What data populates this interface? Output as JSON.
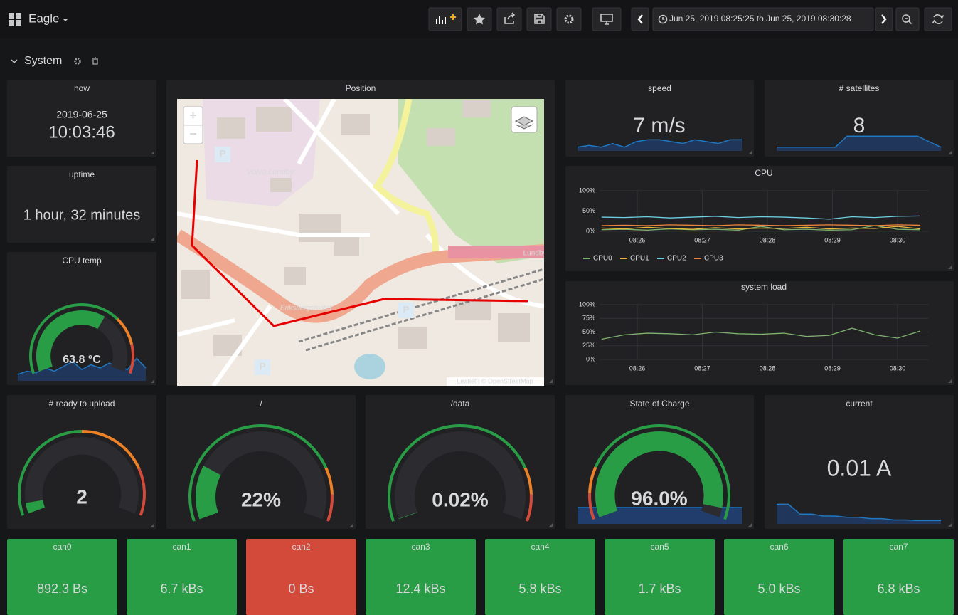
{
  "header": {
    "title": "Eagle",
    "time_range": "Jun 25, 2019 08:25:25 to Jun 25, 2019 08:30:28"
  },
  "row": {
    "title": "System"
  },
  "now": {
    "title": "now",
    "date": "2019-06-25",
    "time": "10:03:46"
  },
  "uptime": {
    "title": "uptime",
    "value": "1 hour, 32 minutes"
  },
  "cpu_temp": {
    "title": "CPU temp",
    "value": 63.8,
    "label": "63.8 °C",
    "min": 0,
    "max": 100,
    "thresholds": [
      {
        "value": 0,
        "color": "#299c46"
      },
      {
        "value": 70,
        "color": "#ed8128"
      },
      {
        "value": 85,
        "color": "#d44a3a"
      }
    ],
    "spark": {
      "values": [
        20,
        30,
        25,
        40,
        30,
        45,
        60,
        35,
        50,
        40,
        55,
        45,
        35,
        70,
        40
      ],
      "ylim": [
        0,
        100
      ]
    }
  },
  "position": {
    "title": "Position",
    "zoom_in": "+",
    "zoom_out": "−",
    "parking": "P",
    "places": [
      "Volvo Lundby",
      "Eriksbergsmotet",
      "Lundby"
    ],
    "attribution": "Leaflet | © OpenStreetMap"
  },
  "speed": {
    "title": "speed",
    "value": "7 m/s",
    "spark": {
      "values": [
        2,
        3,
        2,
        4,
        2,
        5,
        6,
        6,
        5,
        4,
        6,
        5,
        4,
        6,
        6
      ],
      "ylim": [
        0,
        10
      ]
    }
  },
  "satellites": {
    "title": "# satellites",
    "value": "8",
    "spark": {
      "values": [
        2,
        2,
        2,
        2,
        2,
        2,
        8,
        8,
        8,
        8,
        8,
        8,
        8,
        5,
        2
      ],
      "ylim": [
        0,
        10
      ]
    }
  },
  "cpu": {
    "type": "line",
    "title": "CPU",
    "x": [
      25.45,
      25.8,
      26.15,
      26.5,
      26.85,
      27.2,
      27.55,
      27.9,
      28.25,
      28.6,
      28.95,
      29.3,
      29.65,
      30.0,
      30.35
    ],
    "xlim": [
      25.42,
      30.47
    ],
    "xticks": [
      {
        "value": 26,
        "label": "08:26"
      },
      {
        "value": 27,
        "label": "08:27"
      },
      {
        "value": 28,
        "label": "08:28"
      },
      {
        "value": 29,
        "label": "08:29"
      },
      {
        "value": 30,
        "label": "08:30"
      }
    ],
    "ylim": [
      0,
      100
    ],
    "yticks": [
      {
        "value": 0,
        "label": "0%"
      },
      {
        "value": 50,
        "label": "50%"
      },
      {
        "value": 100,
        "label": "100%"
      }
    ],
    "series": [
      {
        "name": "CPU0",
        "color": "#7eb26d",
        "values": [
          4,
          5,
          3,
          6,
          4,
          5,
          3,
          12,
          4,
          5,
          3,
          4,
          14,
          5,
          4
        ]
      },
      {
        "name": "CPU1",
        "color": "#eab839",
        "values": [
          8,
          6,
          10,
          7,
          5,
          9,
          6,
          8,
          7,
          10,
          6,
          8,
          7,
          12,
          6
        ]
      },
      {
        "name": "CPU2",
        "color": "#6ed0e0",
        "values": [
          35,
          34,
          36,
          33,
          35,
          37,
          34,
          36,
          35,
          33,
          30,
          36,
          34,
          37,
          38
        ]
      },
      {
        "name": "CPU3",
        "color": "#ef843c",
        "values": [
          14,
          15,
          14,
          16,
          15,
          14,
          16,
          15,
          14,
          15,
          16,
          15,
          14,
          16,
          15
        ]
      }
    ]
  },
  "load": {
    "type": "line",
    "title": "system load",
    "x": [
      25.45,
      25.8,
      26.15,
      26.5,
      26.85,
      27.2,
      27.55,
      27.9,
      28.25,
      28.6,
      28.95,
      29.3,
      29.65,
      30.0,
      30.35
    ],
    "xlim": [
      25.42,
      30.47
    ],
    "xticks": [
      {
        "value": 26,
        "label": "08:26"
      },
      {
        "value": 27,
        "label": "08:27"
      },
      {
        "value": 28,
        "label": "08:28"
      },
      {
        "value": 29,
        "label": "08:29"
      },
      {
        "value": 30,
        "label": "08:30"
      }
    ],
    "ylim": [
      0,
      100
    ],
    "yticks": [
      {
        "value": 0,
        "label": "0%"
      },
      {
        "value": 25,
        "label": "25%"
      },
      {
        "value": 50,
        "label": "50%"
      },
      {
        "value": 75,
        "label": "75%"
      },
      {
        "value": 100,
        "label": "100%"
      }
    ],
    "series": [
      {
        "color": "#7eb26d",
        "values": [
          37,
          45,
          48,
          47,
          45,
          50,
          47,
          46,
          48,
          42,
          44,
          57,
          45,
          39,
          52
        ]
      }
    ]
  },
  "gauges": [
    {
      "title": "# ready to upload",
      "value": 2,
      "label": "2",
      "min": 0,
      "max": 40,
      "thresholds": [
        {
          "value": 0,
          "color": "#299c46"
        },
        {
          "value": 20,
          "color": "#ed8128"
        },
        {
          "value": 32,
          "color": "#d44a3a"
        }
      ]
    },
    {
      "title": "/",
      "value": 22,
      "label": "22%",
      "min": 0,
      "max": 100,
      "thresholds": [
        {
          "value": 0,
          "color": "#299c46"
        },
        {
          "value": 80,
          "color": "#ed8128"
        },
        {
          "value": 90,
          "color": "#d44a3a"
        }
      ]
    },
    {
      "title": "/data",
      "value": 0.02,
      "label": "0.02%",
      "min": 0,
      "max": 100,
      "thresholds": [
        {
          "value": 0,
          "color": "#299c46"
        },
        {
          "value": 80,
          "color": "#ed8128"
        },
        {
          "value": 90,
          "color": "#d44a3a"
        }
      ]
    },
    {
      "title": "State of Charge",
      "value": 96.0,
      "label": "96.0%",
      "min": 0,
      "max": 100,
      "thresholds": [
        {
          "value": 0,
          "color": "#d44a3a"
        },
        {
          "value": 10,
          "color": "#ed8128"
        },
        {
          "value": 20,
          "color": "#299c46"
        }
      ],
      "spark": {
        "values": [
          96,
          96,
          96,
          96,
          96,
          96,
          96,
          96,
          96,
          96,
          96,
          96,
          96,
          96,
          96
        ],
        "ylim": [
          0,
          100
        ]
      }
    }
  ],
  "current": {
    "title": "current",
    "value": "0.01 A",
    "spark": {
      "values": [
        0.03,
        0.03,
        0.015,
        0.015,
        0.012,
        0.012,
        0.01,
        0.01,
        0.008,
        0.008,
        0.006,
        0.006,
        0.005,
        0.005,
        0.005
      ],
      "ylim": [
        0,
        0.05
      ]
    }
  },
  "can": [
    {
      "title": "can0",
      "value": "892.3 Bs",
      "color": "#299c46"
    },
    {
      "title": "can1",
      "value": "6.7 kBs",
      "color": "#299c46"
    },
    {
      "title": "can2",
      "value": "0 Bs",
      "color": "#d44a3a"
    },
    {
      "title": "can3",
      "value": "12.4 kBs",
      "color": "#299c46"
    },
    {
      "title": "can4",
      "value": "5.8 kBs",
      "color": "#299c46"
    },
    {
      "title": "can5",
      "value": "1.7 kBs",
      "color": "#299c46"
    },
    {
      "title": "can6",
      "value": "5.0 kBs",
      "color": "#299c46"
    },
    {
      "title": "can7",
      "value": "6.8 kBs",
      "color": "#299c46"
    }
  ]
}
